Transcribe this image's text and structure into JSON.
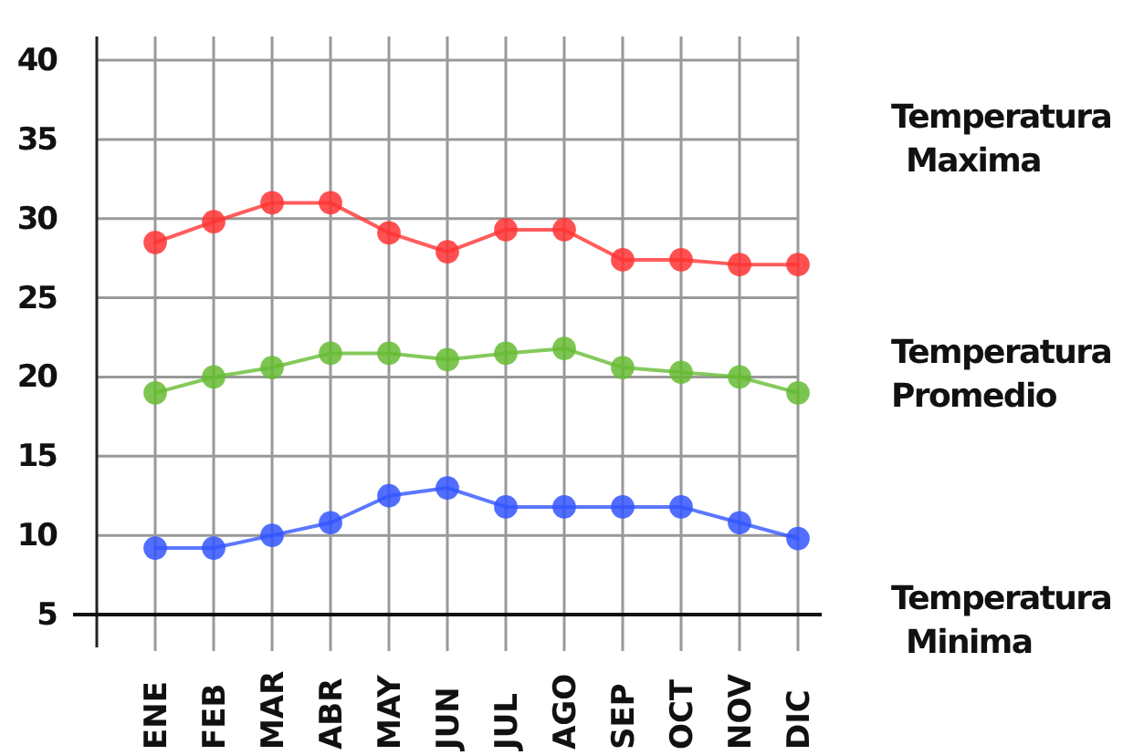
{
  "chart_data": {
    "type": "line",
    "categories": [
      "ENE",
      "FEB",
      "MAR",
      "ABR",
      "MAY",
      "JUN",
      "JUL",
      "AGO",
      "SEP",
      "OCT",
      "NOV",
      "DIC"
    ],
    "series": [
      {
        "name": "Temperatura Maxima",
        "color": "#ff3333",
        "values": [
          28.5,
          29.8,
          31,
          31,
          29.1,
          27.9,
          29.3,
          29.3,
          27.4,
          27.4,
          27.1,
          27.1
        ]
      },
      {
        "name": "Temperatura Promedio",
        "color": "#66bb33",
        "values": [
          19,
          20,
          20.6,
          21.5,
          21.5,
          21.1,
          21.5,
          21.8,
          20.6,
          20.3,
          20,
          19
        ]
      },
      {
        "name": "Temperatura Minima",
        "color": "#3355ff",
        "values": [
          9.2,
          9.2,
          10,
          10.8,
          12.5,
          13,
          11.8,
          11.8,
          11.8,
          11.8,
          10.8,
          9.8
        ]
      }
    ],
    "ylim": [
      5,
      41.5
    ],
    "yticks": [
      5,
      10,
      15,
      20,
      25,
      30,
      35,
      40
    ],
    "grid": true,
    "marker": "circle",
    "line_style": "solid",
    "legend": "right"
  }
}
